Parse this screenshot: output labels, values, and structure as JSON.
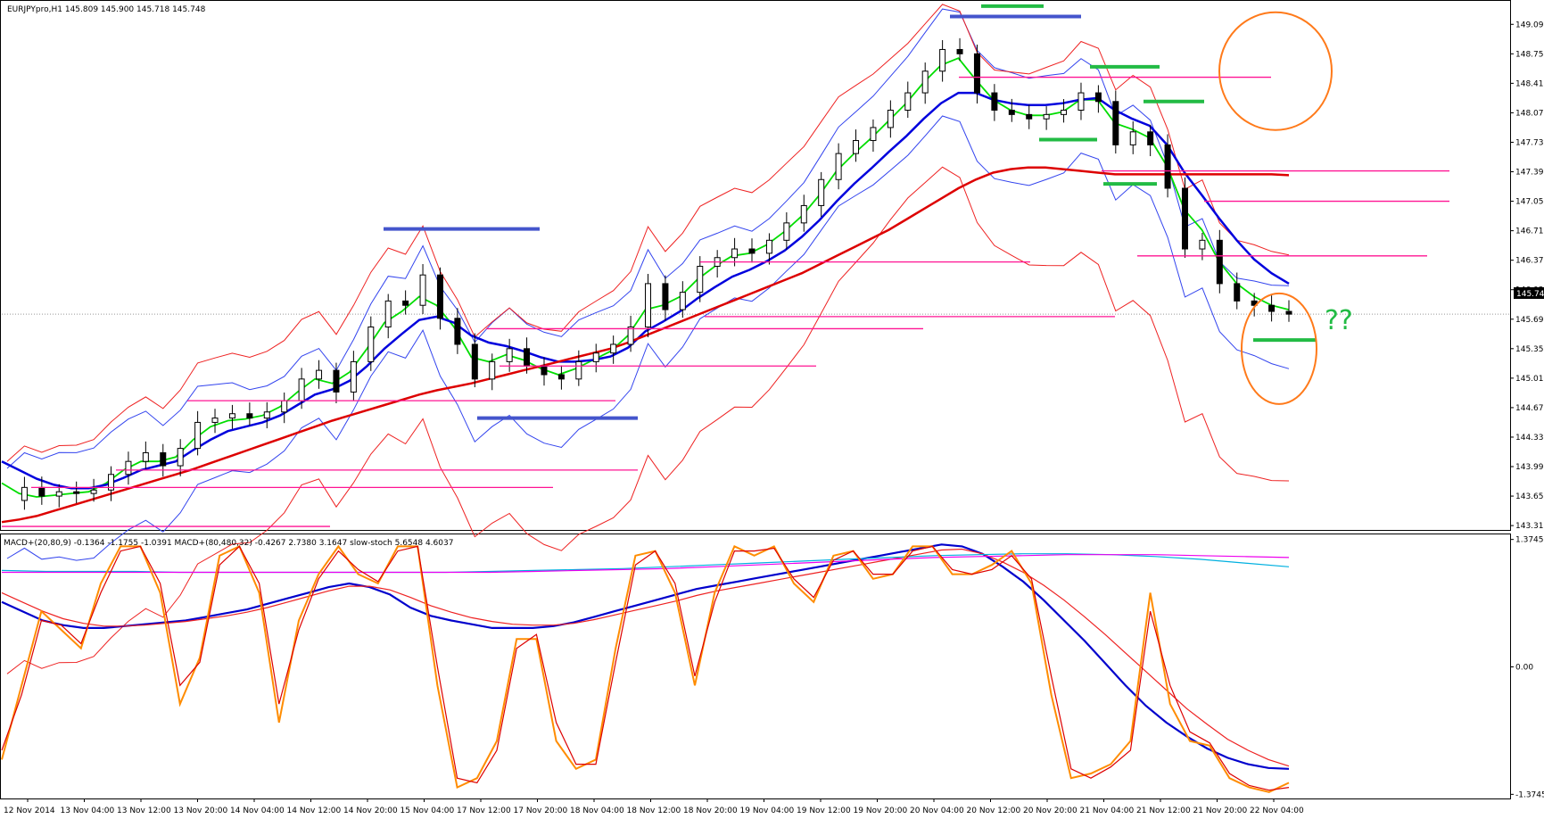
{
  "window": {
    "header": "EURJPYpro,H1  145.809 145.900 145.718 145.748",
    "indicator_header": "MACD+(20,80,9) -0.1364 -1.1755 -1.0391  MACD+(80,480,32) -0.4267 2.7380 3.1647  slow-stoch 5.6548 4.6037",
    "current_price_label": "145.748",
    "annotation": "??"
  },
  "chart_data": [
    {
      "type": "candlestick",
      "symbol": "EURJPYpro",
      "timeframe": "H1",
      "ohlc_current": {
        "open": 145.809,
        "high": 145.9,
        "low": 145.718,
        "close": 145.748
      },
      "y_ticks": [
        149.09,
        148.75,
        148.41,
        148.07,
        147.73,
        147.39,
        147.05,
        146.71,
        146.37,
        146.03,
        145.69,
        145.35,
        145.01,
        144.67,
        144.33,
        143.99,
        143.65,
        143.31
      ],
      "y_tick_labels": [
        "149.090",
        "148.750",
        "148.410",
        "148.070",
        "147.730",
        "147.390",
        "147.050",
        "146.710",
        "146.370",
        "146.030",
        "145.690",
        "145.350",
        "145.010",
        "144.670",
        "144.330",
        "143.990",
        "143.650",
        "143.310"
      ],
      "ylim": [
        143.27,
        149.35
      ],
      "x_labels": [
        "12 Nov 2014",
        "13 Nov 04:00",
        "13 Nov 12:00",
        "13 Nov 20:00",
        "14 Nov 04:00",
        "14 Nov 12:00",
        "14 Nov 20:00",
        "15 Nov 04:00",
        "17 Nov 12:00",
        "17 Nov 20:00",
        "18 Nov 04:00",
        "18 Nov 12:00",
        "18 Nov 20:00",
        "19 Nov 04:00",
        "19 Nov 12:00",
        "19 Nov 20:00",
        "20 Nov 04:00",
        "20 Nov 12:00",
        "20 Nov 20:00",
        "21 Nov 04:00",
        "21 Nov 12:00",
        "21 Nov 20:00",
        "22 Nov 04:00"
      ],
      "close_path": [
        143.6,
        143.75,
        143.65,
        143.7,
        143.68,
        143.72,
        143.9,
        144.05,
        144.15,
        144.0,
        144.2,
        144.5,
        144.55,
        144.6,
        144.55,
        144.62,
        144.75,
        145.0,
        145.1,
        144.85,
        145.2,
        145.6,
        145.9,
        145.85,
        146.2,
        145.7,
        145.4,
        145.0,
        145.2,
        145.35,
        145.15,
        145.05,
        145.0,
        145.2,
        145.3,
        145.4,
        145.6,
        146.1,
        145.8,
        146.0,
        146.3,
        146.4,
        146.5,
        146.45,
        146.6,
        146.8,
        147.0,
        147.3,
        147.6,
        147.75,
        147.9,
        148.1,
        148.3,
        148.55,
        148.8,
        148.75,
        148.3,
        148.1,
        148.05,
        148.0,
        148.05,
        148.1,
        148.3,
        148.2,
        147.7,
        147.85,
        147.7,
        147.2,
        146.5,
        146.6,
        146.1,
        145.9,
        145.85,
        145.78,
        145.748
      ],
      "series": [
        {
          "name": "",
          "color": "#00dd00",
          "values": [
            143.8,
            143.68,
            143.64,
            143.66,
            143.68,
            143.7,
            143.8,
            143.95,
            144.05,
            144.05,
            144.1,
            144.3,
            144.45,
            144.52,
            144.54,
            144.58,
            144.68,
            144.85,
            145.0,
            144.95,
            145.08,
            145.35,
            145.65,
            145.78,
            145.95,
            145.85,
            145.6,
            145.25,
            145.2,
            145.28,
            145.22,
            145.12,
            145.05,
            145.12,
            145.22,
            145.32,
            145.5,
            145.8,
            145.85,
            145.95,
            146.15,
            146.3,
            146.42,
            146.45,
            146.55,
            146.7,
            146.88,
            147.12,
            147.4,
            147.6,
            147.78,
            147.98,
            148.18,
            148.42,
            148.62,
            148.7,
            148.45,
            148.22,
            148.1,
            148.04,
            148.04,
            148.08,
            148.22,
            148.22,
            147.95,
            147.88,
            147.78,
            147.45,
            146.95,
            146.72,
            146.35,
            146.1,
            145.95,
            145.85,
            145.8
          ]
        },
        {
          "name": "",
          "color": "#0000dd",
          "values": [
            144.05,
            143.95,
            143.85,
            143.78,
            143.74,
            143.74,
            143.78,
            143.86,
            143.95,
            144.0,
            144.05,
            144.18,
            144.3,
            144.4,
            144.45,
            144.5,
            144.58,
            144.7,
            144.82,
            144.88,
            144.98,
            145.15,
            145.35,
            145.52,
            145.68,
            145.72,
            145.65,
            145.5,
            145.42,
            145.38,
            145.32,
            145.25,
            145.2,
            145.2,
            145.22,
            145.26,
            145.36,
            145.55,
            145.66,
            145.78,
            145.93,
            146.06,
            146.18,
            146.26,
            146.36,
            146.48,
            146.64,
            146.83,
            147.05,
            147.25,
            147.43,
            147.62,
            147.8,
            148.0,
            148.18,
            148.3,
            148.3,
            148.22,
            148.18,
            148.16,
            148.16,
            148.18,
            148.22,
            148.24,
            148.1,
            148.0,
            147.92,
            147.7,
            147.38,
            147.12,
            146.85,
            146.6,
            146.38,
            146.22,
            146.1
          ]
        },
        {
          "name": "",
          "color": "#dd0000",
          "values": [
            143.35,
            143.38,
            143.42,
            143.48,
            143.54,
            143.6,
            143.66,
            143.72,
            143.78,
            143.84,
            143.9,
            143.96,
            144.03,
            144.1,
            144.17,
            144.24,
            144.31,
            144.38,
            144.45,
            144.52,
            144.58,
            144.64,
            144.7,
            144.76,
            144.82,
            144.87,
            144.91,
            144.95,
            145.0,
            145.05,
            145.1,
            145.15,
            145.2,
            145.25,
            145.3,
            145.35,
            145.42,
            145.5,
            145.58,
            145.66,
            145.74,
            145.82,
            145.9,
            145.98,
            146.06,
            146.14,
            146.22,
            146.32,
            146.42,
            146.52,
            146.62,
            146.72,
            146.84,
            146.96,
            147.08,
            147.2,
            147.3,
            147.38,
            147.42,
            147.44,
            147.44,
            147.42,
            147.4,
            147.38,
            147.36,
            147.36,
            147.36,
            147.36,
            147.36,
            147.36,
            147.36,
            147.36,
            147.36,
            147.36,
            147.35
          ]
        }
      ]
    },
    {
      "type": "line",
      "title": "MACD+(20,80,9) -0.1364 -1.1755 -1.0391  MACD+(80,480,32) -0.4267 2.7380 3.1647  slow-stoch 5.6548 4.6037",
      "y_tick_labels": [
        "1.3745",
        "0.00",
        "-1.3745"
      ],
      "ylim": [
        -1.4,
        1.4
      ],
      "series": [
        {
          "name": "",
          "color": "#0000cc",
          "values": [
            0.7,
            0.6,
            0.5,
            0.45,
            0.42,
            0.42,
            0.44,
            0.46,
            0.48,
            0.5,
            0.54,
            0.58,
            0.62,
            0.68,
            0.74,
            0.8,
            0.86,
            0.9,
            0.86,
            0.78,
            0.64,
            0.55,
            0.5,
            0.46,
            0.42,
            0.42,
            0.42,
            0.44,
            0.48,
            0.54,
            0.6,
            0.66,
            0.72,
            0.78,
            0.84,
            0.88,
            0.92,
            0.96,
            1.0,
            1.04,
            1.08,
            1.12,
            1.16,
            1.2,
            1.24,
            1.28,
            1.32,
            1.3,
            1.22,
            1.08,
            0.92,
            0.72,
            0.5,
            0.28,
            0.04,
            -0.2,
            -0.42,
            -0.6,
            -0.75,
            -0.88,
            -0.98,
            -1.05,
            -1.09,
            -1.1
          ]
        },
        {
          "name": "",
          "color": "#ee2222",
          "values": [
            0.8,
            0.7,
            0.6,
            0.52,
            0.47,
            0.44,
            0.44,
            0.45,
            0.47,
            0.49,
            0.52,
            0.55,
            0.59,
            0.64,
            0.7,
            0.76,
            0.82,
            0.87,
            0.87,
            0.83,
            0.75,
            0.66,
            0.59,
            0.53,
            0.49,
            0.46,
            0.45,
            0.45,
            0.47,
            0.51,
            0.56,
            0.61,
            0.66,
            0.71,
            0.77,
            0.82,
            0.86,
            0.9,
            0.94,
            0.98,
            1.02,
            1.06,
            1.1,
            1.14,
            1.18,
            1.22,
            1.26,
            1.27,
            1.22,
            1.13,
            1.02,
            0.88,
            0.72,
            0.54,
            0.35,
            0.15,
            -0.05,
            -0.25,
            -0.45,
            -0.62,
            -0.78,
            -0.9,
            -1.0,
            -1.07
          ]
        },
        {
          "name": "",
          "color": "#00b0e0",
          "values": [
            1.04,
            1.03,
            1.03,
            1.03,
            1.02,
            1.02,
            1.02,
            1.02,
            1.02,
            1.02,
            1.02,
            1.03,
            1.04,
            1.05,
            1.06,
            1.08,
            1.1,
            1.12,
            1.14,
            1.16,
            1.18,
            1.2,
            1.21,
            1.22,
            1.22,
            1.21,
            1.19,
            1.16,
            1.12,
            1.08
          ]
        },
        {
          "name": "",
          "color": "#ee00ee",
          "values": [
            1.02,
            1.02,
            1.02,
            1.02,
            1.02,
            1.02,
            1.02,
            1.02,
            1.02,
            1.02,
            1.02,
            1.02,
            1.03,
            1.04,
            1.05,
            1.06,
            1.08,
            1.1,
            1.12,
            1.14,
            1.16,
            1.18,
            1.19,
            1.2,
            1.21,
            1.21,
            1.21,
            1.2,
            1.19,
            1.18
          ]
        },
        {
          "name": "",
          "color": "#ff8c00",
          "values": [
            -1.0,
            -0.2,
            0.6,
            0.4,
            0.2,
            0.9,
            1.3,
            1.3,
            0.8,
            -0.4,
            0.1,
            1.2,
            1.3,
            0.8,
            -0.6,
            0.5,
            1.0,
            1.3,
            1.0,
            0.9,
            1.3,
            1.3,
            -0.2,
            -1.3,
            -1.2,
            -0.8,
            0.3,
            0.3,
            -0.8,
            -1.1,
            -1.0,
            0.2,
            1.2,
            1.25,
            0.8,
            -0.2,
            0.8,
            1.3,
            1.2,
            1.3,
            0.9,
            0.7,
            1.2,
            1.25,
            0.95,
            1.0,
            1.3,
            1.3,
            1.0,
            1.0,
            1.1,
            1.25,
            0.9,
            -0.3,
            -1.2,
            -1.15,
            -1.05,
            -0.8,
            0.8,
            -0.4,
            -0.8,
            -0.85,
            -1.2,
            -1.3,
            -1.35,
            -1.25
          ]
        },
        {
          "name": "",
          "color": "#dd0000",
          "values": [
            -0.9,
            -0.3,
            0.5,
            0.45,
            0.25,
            0.8,
            1.25,
            1.3,
            0.9,
            -0.2,
            0.05,
            1.1,
            1.3,
            0.9,
            -0.4,
            0.4,
            0.95,
            1.25,
            1.05,
            0.92,
            1.25,
            1.3,
            0.0,
            -1.2,
            -1.25,
            -0.9,
            0.2,
            0.35,
            -0.6,
            -1.05,
            -1.05,
            0.05,
            1.1,
            1.25,
            0.9,
            -0.1,
            0.7,
            1.25,
            1.25,
            1.28,
            0.95,
            0.75,
            1.15,
            1.25,
            1.0,
            1.0,
            1.25,
            1.3,
            1.05,
            1.0,
            1.05,
            1.2,
            0.95,
            -0.1,
            -1.1,
            -1.2,
            -1.08,
            -0.9,
            0.6,
            -0.2,
            -0.7,
            -0.82,
            -1.15,
            -1.28,
            -1.33,
            -1.3
          ]
        }
      ]
    }
  ],
  "colors": {
    "level_line": "#ff1493",
    "blue_mark": "#4455cc",
    "green_mark": "#22bb44",
    "circle": "#ff7a1a",
    "question": "#22bb44"
  }
}
